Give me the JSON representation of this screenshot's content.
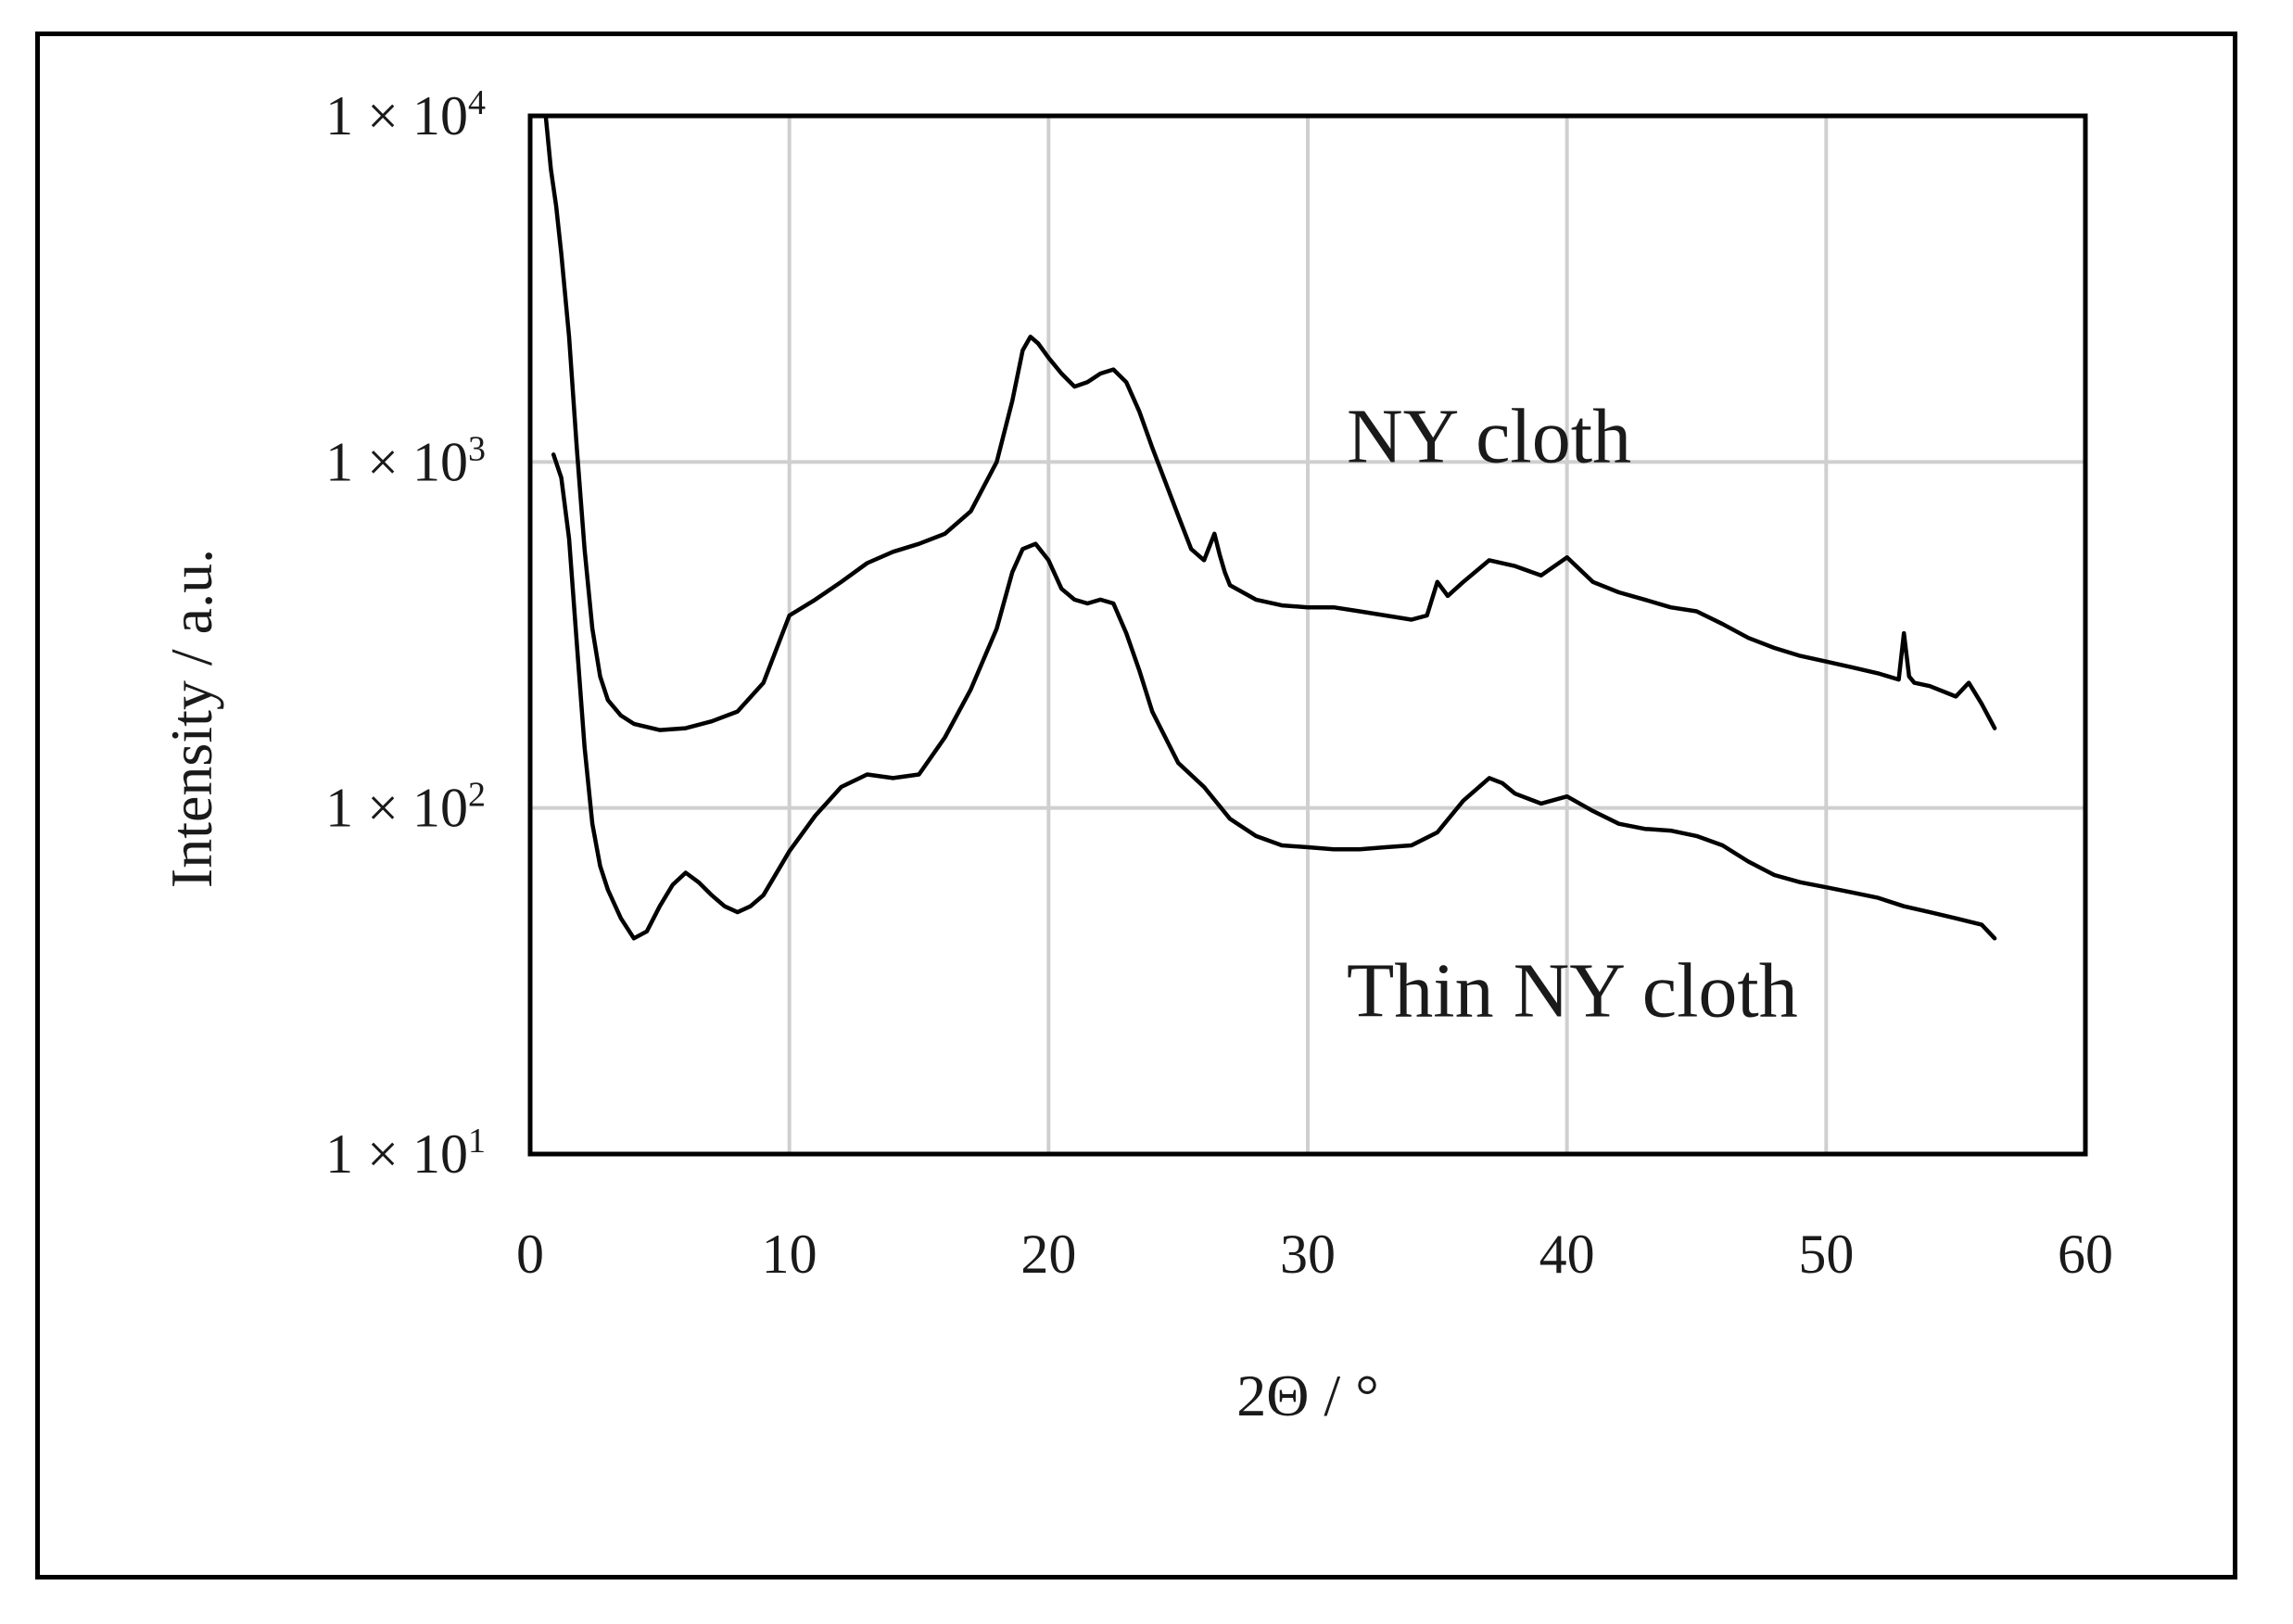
{
  "chart_data": {
    "type": "line",
    "xlabel": "2Θ / °",
    "ylabel": "Intensity / a.u.",
    "xlim": [
      0,
      60
    ],
    "ylim": [
      10,
      10000
    ],
    "yscale": "log",
    "grid": true,
    "x_ticks": [
      0,
      10,
      20,
      30,
      40,
      50,
      60
    ],
    "y_ticks": [
      {
        "value": 10,
        "mantissa": "1 × 10",
        "exp": "1"
      },
      {
        "value": 100,
        "mantissa": "1 × 10",
        "exp": "2"
      },
      {
        "value": 1000,
        "mantissa": "1 × 10",
        "exp": "3"
      },
      {
        "value": 10000,
        "mantissa": "1 × 10",
        "exp": "4"
      }
    ],
    "annotations": [
      {
        "id": "upper",
        "text": "NY cloth",
        "x": 31.5,
        "y": 1000
      },
      {
        "id": "lower",
        "text": "Thin NY cloth",
        "x": 31.5,
        "y": 25
      }
    ],
    "series": [
      {
        "x": [
          0.6,
          0.8,
          1.0,
          1.2,
          1.5,
          1.8,
          2.1,
          2.4,
          2.7,
          3.0,
          3.5,
          4.0,
          5.0,
          6.0,
          7.0,
          8.0,
          9.0,
          10.0,
          11.0,
          12.0,
          13.0,
          14.0,
          15.0,
          16.0,
          17.0,
          18.0,
          18.6,
          19.0,
          19.3,
          19.6,
          20.0,
          20.5,
          21.0,
          21.5,
          22.0,
          22.5,
          23.0,
          23.5,
          24.0,
          25.0,
          25.5,
          26.0,
          26.4,
          26.6,
          26.8,
          27.0,
          28.0,
          29.0,
          30.0,
          31.0,
          32.0,
          33.0,
          34.0,
          34.6,
          35.0,
          35.4,
          36.0,
          37.0,
          38.0,
          39.0,
          40.0,
          41.0,
          42.0,
          43.0,
          44.0,
          45.0,
          46.0,
          47.0,
          48.0,
          49.0,
          50.0,
          51.0,
          52.0,
          52.8,
          53.0,
          53.2,
          53.4,
          54.0,
          55.0,
          55.5,
          56.0,
          56.5
        ],
        "y": [
          10000,
          7000,
          5500,
          4000,
          2300,
          1100,
          560,
          330,
          240,
          205,
          185,
          175,
          168,
          170,
          178,
          190,
          230,
          360,
          400,
          450,
          510,
          550,
          580,
          620,
          720,
          1000,
          1500,
          2100,
          2300,
          2200,
          2000,
          1800,
          1650,
          1700,
          1800,
          1850,
          1700,
          1400,
          1100,
          700,
          560,
          520,
          620,
          540,
          480,
          440,
          400,
          385,
          380,
          380,
          370,
          360,
          350,
          360,
          450,
          410,
          450,
          520,
          500,
          470,
          530,
          450,
          420,
          400,
          380,
          370,
          340,
          310,
          290,
          275,
          265,
          255,
          245,
          235,
          320,
          240,
          230,
          225,
          210,
          230,
          200,
          170
        ]
      },
      {
        "x": [
          0.9,
          1.2,
          1.5,
          1.8,
          2.1,
          2.4,
          2.7,
          3.0,
          3.5,
          4.0,
          4.5,
          5.0,
          5.5,
          6.0,
          6.5,
          7.0,
          7.5,
          8.0,
          8.5,
          9.0,
          10.0,
          11.0,
          12.0,
          13.0,
          14.0,
          15.0,
          16.0,
          17.0,
          18.0,
          18.6,
          19.0,
          19.5,
          20.0,
          20.5,
          21.0,
          21.5,
          22.0,
          22.5,
          23.0,
          23.5,
          24.0,
          25.0,
          26.0,
          27.0,
          28.0,
          29.0,
          30.0,
          31.0,
          32.0,
          33.0,
          34.0,
          35.0,
          36.0,
          37.0,
          37.5,
          38.0,
          39.0,
          40.0,
          41.0,
          42.0,
          43.0,
          44.0,
          45.0,
          46.0,
          47.0,
          48.0,
          49.0,
          50.0,
          51.0,
          52.0,
          53.0,
          54.0,
          55.0,
          56.0,
          56.5
        ],
        "y": [
          1050,
          900,
          600,
          300,
          150,
          90,
          68,
          58,
          48,
          42,
          44,
          52,
          60,
          65,
          61,
          56,
          52,
          50,
          52,
          56,
          75,
          95,
          115,
          125,
          122,
          125,
          160,
          220,
          330,
          480,
          560,
          580,
          520,
          430,
          400,
          390,
          400,
          390,
          320,
          250,
          190,
          135,
          115,
          93,
          83,
          78,
          77,
          76,
          76,
          77,
          78,
          85,
          105,
          122,
          118,
          110,
          103,
          108,
          98,
          90,
          87,
          86,
          83,
          78,
          70,
          64,
          61,
          59,
          57,
          55,
          52,
          50,
          48,
          46,
          42
        ]
      }
    ]
  }
}
